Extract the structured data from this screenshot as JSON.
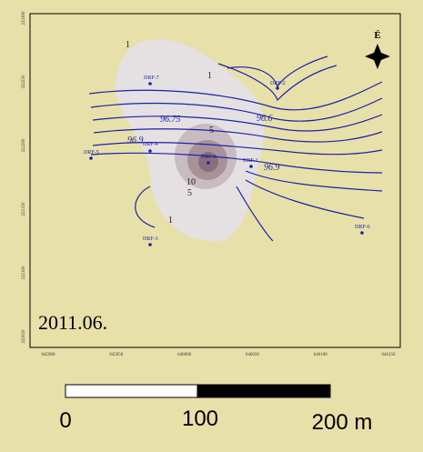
{
  "map": {
    "x_ticks": [
      "645900",
      "645950",
      "646000",
      "646050",
      "646100",
      "646150"
    ],
    "y_ticks": [
      "222300",
      "222250",
      "222200",
      "222150",
      "222100",
      "222050"
    ],
    "north": "É",
    "date": "2011.06.",
    "wells": [
      "DRF-7",
      "DRF-2",
      "DRF-5",
      "DRF-4",
      "DRF-8",
      "DRF-1",
      "DRF-3",
      "DRF-6"
    ],
    "contour_labels": [
      "96.75",
      "96.6",
      "96.9",
      "96.9",
      "5",
      "10",
      "5",
      "1",
      "1",
      "1"
    ],
    "scale_bar": [
      "0",
      "100",
      "200 m"
    ]
  }
}
